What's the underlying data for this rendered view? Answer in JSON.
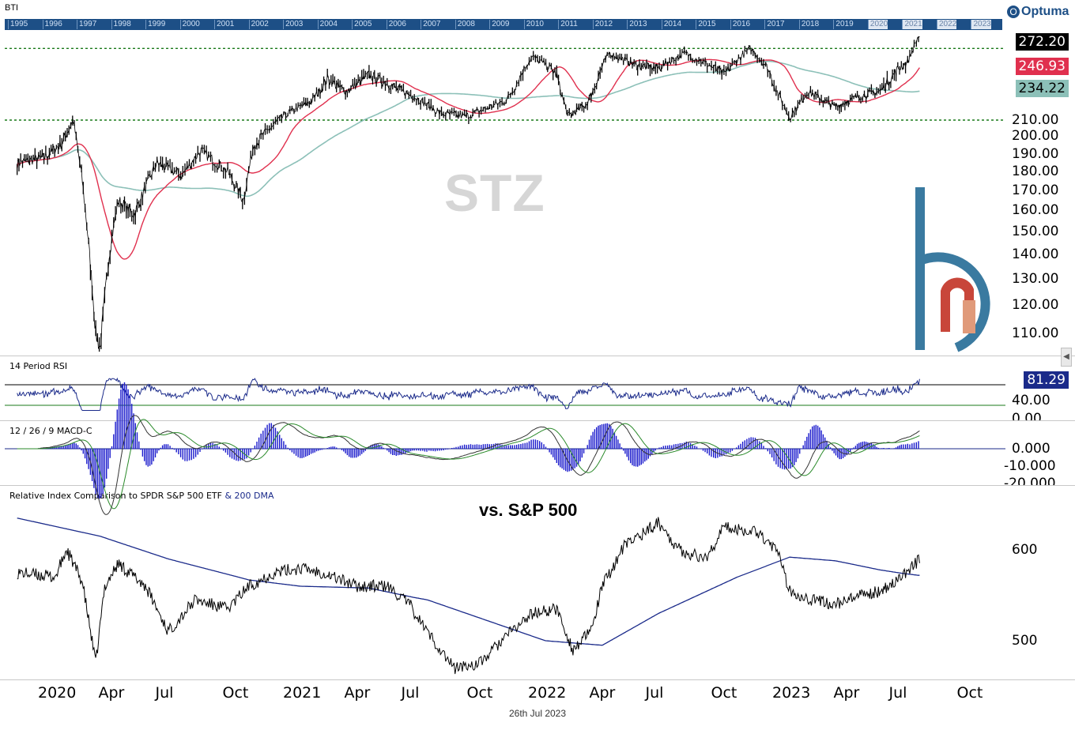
{
  "header": {
    "symbol_label": "BTI",
    "brand": "Optuma",
    "overview_years": [
      "1995",
      "1996",
      "1997",
      "1998",
      "1999",
      "2000",
      "2001",
      "2002",
      "2003",
      "2004",
      "2005",
      "2006",
      "2007",
      "2008",
      "2009",
      "2010",
      "2011",
      "2012",
      "2013",
      "2014",
      "2015",
      "2016",
      "2017",
      "2018",
      "2019",
      "2020",
      "2021",
      "2022",
      "2023"
    ]
  },
  "watermark": "STZ",
  "price_panel": {
    "last_price": "272.20",
    "ma_red_value": "246.93",
    "ma_teal_value": "234.22",
    "y_ticks": [
      "210.00",
      "200.00",
      "190.00",
      "180.00",
      "170.00",
      "160.00",
      "150.00",
      "140.00",
      "130.00",
      "120.00",
      "110.00"
    ],
    "colors": {
      "price": "#000000",
      "ma_red": "#e0304e",
      "ma_teal": "#8cc0b8",
      "support": "#1a7a1a"
    }
  },
  "rsi_panel": {
    "title": "14 Period RSI",
    "value": "81.29",
    "y_ticks": [
      "40.00",
      "0.00"
    ]
  },
  "macd_panel": {
    "title": "12 / 26 / 9 MACD-C",
    "y_ticks": [
      "0.000",
      "-10.000",
      "-20.000"
    ]
  },
  "relative_panel": {
    "title_main": "Relative Index Comparison to SPDR S&P 500 ETF",
    "title_extra": "& 200 DMA",
    "annotation": "vs. S&P 500",
    "y_ticks": [
      "600",
      "500"
    ]
  },
  "x_axis": {
    "ticks": [
      "2020",
      "Apr",
      "Jul",
      "Oct",
      "2021",
      "Apr",
      "Jul",
      "Oct",
      "2022",
      "Apr",
      "Jul",
      "Oct",
      "2023",
      "Apr",
      "Jul",
      "Oct"
    ]
  },
  "footer_date": "26th Jul 2023",
  "chart_data": {
    "type": "line",
    "title": "STZ",
    "x": [
      "2020-01",
      "2020-03",
      "2020-04",
      "2020-07",
      "2020-10",
      "2021-01",
      "2021-04",
      "2021-07",
      "2021-10",
      "2022-01",
      "2022-04",
      "2022-07",
      "2022-10",
      "2022-12",
      "2023-04",
      "2023-07"
    ],
    "series": [
      {
        "name": "Price",
        "values": [
          188,
          115,
          155,
          185,
          175,
          218,
          243,
          230,
          212,
          246,
          253,
          245,
          250,
          213,
          228,
          272.2
        ]
      }
    ],
    "ylim": [
      100,
      280
    ],
    "support_lines": [
      210,
      262
    ],
    "last_values": {
      "price": 272.2,
      "ma_red": 246.93,
      "ma_teal": 234.22
    },
    "rsi_last": 81.29,
    "relative_ylim": [
      460,
      660
    ]
  }
}
